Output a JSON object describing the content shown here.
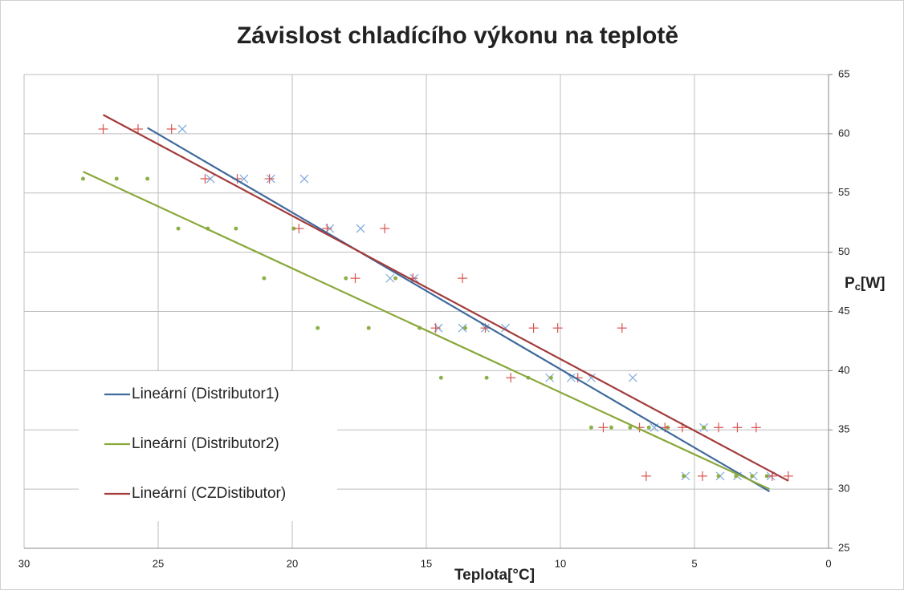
{
  "chart_data": {
    "type": "scatter",
    "title": "Závislost chladícího výkonu na teplotě",
    "x_label": "Teplota[°C]",
    "y_label_parts": [
      "P",
      "c",
      "[W]"
    ],
    "xlim": [
      30,
      0
    ],
    "xticks": [
      30,
      25,
      20,
      15,
      10,
      5,
      0
    ],
    "ylim": [
      25,
      65
    ],
    "yticks": [
      25,
      30,
      35,
      40,
      45,
      50,
      55,
      60,
      65
    ],
    "grid": true,
    "legend": "left",
    "series": [
      {
        "marker": "x",
        "color": "#7ba7d9",
        "x": [
          24.1,
          23.05,
          21.8,
          20.8,
          19.55,
          18.6,
          17.45,
          16.35,
          15.45,
          14.55,
          13.65,
          12.8,
          12.05,
          10.4,
          9.6,
          8.85,
          7.3,
          6.5,
          4.65,
          5.33,
          4.04,
          3.4,
          2.8,
          2.15
        ],
        "values": [
          60.4,
          56.2,
          56.2,
          56.2,
          56.2,
          52,
          52,
          47.8,
          47.8,
          43.6,
          43.6,
          43.6,
          43.6,
          39.4,
          39.4,
          39.4,
          39.4,
          35.2,
          35.2,
          31.1,
          31.1,
          31.1,
          31.1,
          31.1
        ]
      },
      {
        "marker": "dot",
        "color": "#8db04a",
        "x": [
          27.8,
          26.55,
          25.4,
          24.25,
          23.15,
          22.1,
          19.95,
          21.05,
          18.0,
          16.15,
          19.05,
          17.15,
          15.25,
          13.55,
          14.45,
          12.75,
          11.2,
          10.35,
          8.85,
          8.1,
          7.4,
          6.7,
          6.0,
          4.65,
          5.4,
          4.1,
          3.45,
          2.85,
          2.3
        ],
        "values": [
          56.2,
          56.2,
          56.2,
          52,
          52,
          52,
          52,
          47.8,
          47.8,
          47.8,
          43.6,
          43.6,
          43.6,
          43.6,
          39.4,
          39.4,
          39.4,
          39.4,
          35.2,
          35.2,
          35.2,
          35.2,
          35.2,
          35.2,
          31.1,
          31.1,
          31.1,
          31.1,
          31.1
        ]
      },
      {
        "marker": "plus",
        "color": "#d9534f",
        "x": [
          27.05,
          25.75,
          24.5,
          23.25,
          22.05,
          20.85,
          19.75,
          18.7,
          16.55,
          17.65,
          15.5,
          13.65,
          14.65,
          12.8,
          11.0,
          10.1,
          7.7,
          11.85,
          9.35,
          8.4,
          7.05,
          6.1,
          5.45,
          4.1,
          3.4,
          2.7,
          6.8,
          4.7,
          2.1,
          1.5
        ],
        "values": [
          60.4,
          60.4,
          60.4,
          56.2,
          56.2,
          56.2,
          52,
          52,
          52,
          47.8,
          47.8,
          47.8,
          43.6,
          43.6,
          43.6,
          43.6,
          43.6,
          39.4,
          39.4,
          35.2,
          35.2,
          35.2,
          35.2,
          35.2,
          35.2,
          35.2,
          31.1,
          31.1,
          31.1,
          31.1
        ]
      }
    ],
    "trendlines": [
      {
        "name": "Lineární (Distributor1)",
        "color": "#3f6a9b",
        "x": [
          25.4,
          2.2
        ],
        "values": [
          60.5,
          29.8
        ]
      },
      {
        "name": "Lineární (Distributor2)",
        "color": "#8aa83c",
        "x": [
          27.8,
          2.2
        ],
        "values": [
          56.8,
          30.0
        ]
      },
      {
        "name": "Lineární (CZDistibutor)",
        "color": "#a33b3b",
        "x": [
          27.05,
          1.5
        ],
        "values": [
          61.6,
          30.7
        ]
      }
    ]
  }
}
